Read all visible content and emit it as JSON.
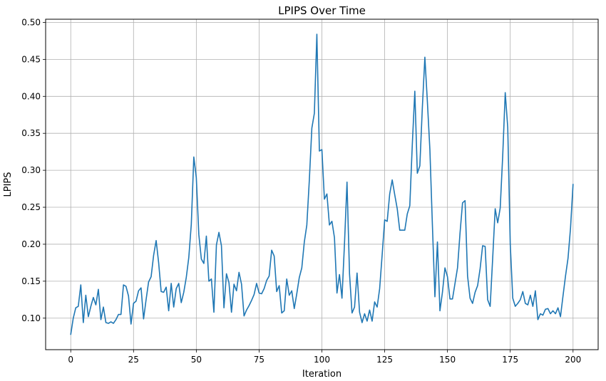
{
  "chart_data": {
    "type": "line",
    "title": "LPIPS Over Time",
    "xlabel": "Iteration",
    "ylabel": "LPIPS",
    "xlim": [
      -10,
      210
    ],
    "ylim": [
      0.0574,
      0.5043
    ],
    "xticks": [
      0,
      25,
      50,
      75,
      100,
      125,
      150,
      175,
      200
    ],
    "yticks": [
      0.1,
      0.15,
      0.2,
      0.25,
      0.3,
      0.35,
      0.4,
      0.45,
      0.5
    ],
    "xtick_labels": [
      "0",
      "25",
      "50",
      "75",
      "100",
      "125",
      "150",
      "175",
      "200"
    ],
    "ytick_labels": [
      "0.10",
      "0.15",
      "0.20",
      "0.25",
      "0.30",
      "0.35",
      "0.40",
      "0.45",
      "0.50"
    ],
    "grid": true,
    "line_color": "#1f77b4",
    "series": [
      {
        "x": [
          0,
          1,
          2,
          3,
          4,
          5,
          6,
          7,
          8,
          9,
          10,
          11,
          12,
          13,
          14,
          15,
          16,
          17,
          18,
          19,
          20,
          21,
          22,
          23,
          24,
          25,
          26,
          27,
          28,
          29,
          30,
          31,
          32,
          33,
          34,
          35,
          36,
          37,
          38,
          39,
          40,
          41,
          42,
          43,
          44,
          45,
          46,
          47,
          48,
          49,
          50,
          51,
          52,
          53,
          54,
          55,
          56,
          57,
          58,
          59,
          60,
          61,
          62,
          63,
          64,
          65,
          66,
          67,
          68,
          69,
          70,
          71,
          72,
          73,
          74,
          75,
          76,
          77,
          78,
          79,
          80,
          81,
          82,
          83,
          84,
          85,
          86,
          87,
          88,
          89,
          90,
          91,
          92,
          93,
          94,
          95,
          96,
          97,
          98,
          99,
          100,
          101,
          102,
          103,
          104,
          105,
          106,
          107,
          108,
          109,
          110,
          111,
          112,
          113,
          114,
          115,
          116,
          117,
          118,
          119,
          120,
          121,
          122,
          123,
          124,
          125,
          126,
          127,
          128,
          129,
          130,
          131,
          132,
          133,
          134,
          135,
          136,
          137,
          138,
          139,
          140,
          141,
          142,
          143,
          144,
          145,
          146,
          147,
          148,
          149,
          150,
          151,
          152,
          153,
          154,
          155,
          156,
          157,
          158,
          159,
          160,
          161,
          162,
          163,
          164,
          165,
          166,
          167,
          168,
          169,
          170,
          171,
          172,
          173,
          174,
          175,
          176,
          177,
          178,
          179,
          180,
          181,
          182,
          183,
          184,
          185,
          186,
          187,
          188,
          189,
          190,
          191,
          192,
          193,
          194,
          195,
          196,
          197,
          198,
          199,
          200
        ],
        "values": [
          0.078,
          0.1,
          0.114,
          0.116,
          0.145,
          0.094,
          0.131,
          0.102,
          0.116,
          0.128,
          0.118,
          0.139,
          0.098,
          0.115,
          0.094,
          0.093,
          0.095,
          0.093,
          0.098,
          0.105,
          0.105,
          0.145,
          0.143,
          0.13,
          0.092,
          0.12,
          0.123,
          0.137,
          0.141,
          0.099,
          0.125,
          0.149,
          0.156,
          0.185,
          0.205,
          0.175,
          0.136,
          0.135,
          0.142,
          0.11,
          0.147,
          0.115,
          0.14,
          0.147,
          0.121,
          0.135,
          0.155,
          0.182,
          0.227,
          0.318,
          0.29,
          0.213,
          0.18,
          0.174,
          0.211,
          0.15,
          0.153,
          0.108,
          0.199,
          0.216,
          0.198,
          0.114,
          0.16,
          0.148,
          0.108,
          0.146,
          0.137,
          0.162,
          0.146,
          0.103,
          0.111,
          0.117,
          0.124,
          0.132,
          0.147,
          0.134,
          0.133,
          0.14,
          0.151,
          0.157,
          0.192,
          0.184,
          0.136,
          0.144,
          0.107,
          0.11,
          0.153,
          0.131,
          0.137,
          0.113,
          0.133,
          0.155,
          0.168,
          0.203,
          0.226,
          0.287,
          0.357,
          0.377,
          0.484,
          0.326,
          0.328,
          0.261,
          0.268,
          0.226,
          0.231,
          0.209,
          0.134,
          0.159,
          0.127,
          0.201,
          0.284,
          0.16,
          0.107,
          0.115,
          0.161,
          0.108,
          0.094,
          0.106,
          0.096,
          0.111,
          0.096,
          0.122,
          0.115,
          0.14,
          0.186,
          0.233,
          0.231,
          0.268,
          0.287,
          0.267,
          0.248,
          0.219,
          0.219,
          0.219,
          0.241,
          0.252,
          0.335,
          0.407,
          0.296,
          0.306,
          0.385,
          0.453,
          0.393,
          0.328,
          0.226,
          0.129,
          0.203,
          0.11,
          0.135,
          0.168,
          0.156,
          0.126,
          0.126,
          0.147,
          0.168,
          0.215,
          0.256,
          0.259,
          0.157,
          0.127,
          0.12,
          0.135,
          0.144,
          0.167,
          0.198,
          0.197,
          0.125,
          0.116,
          0.181,
          0.248,
          0.229,
          0.249,
          0.32,
          0.405,
          0.358,
          0.2,
          0.127,
          0.116,
          0.12,
          0.125,
          0.136,
          0.12,
          0.118,
          0.131,
          0.116,
          0.137,
          0.098,
          0.106,
          0.104,
          0.112,
          0.113,
          0.106,
          0.11,
          0.106,
          0.114,
          0.102,
          0.13,
          0.157,
          0.181,
          0.222,
          0.281
        ]
      }
    ]
  }
}
